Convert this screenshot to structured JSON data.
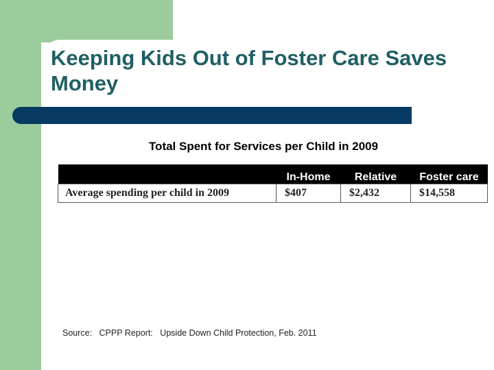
{
  "slide": {
    "title": "Keeping Kids Out of Foster Care Saves Money",
    "table_caption": "Total Spent for Services per Child in 2009",
    "table": {
      "headers": [
        "",
        "In-Home",
        "Relative",
        "Foster care"
      ],
      "rows": [
        [
          "Average spending per child in 2009",
          "$407",
          "$2,432",
          "$14,558"
        ]
      ]
    },
    "source": "Source:   CPPP Report:   Upside Down Child Protection, Feb. 2011"
  },
  "colors": {
    "frame_green": "#9ccc9c",
    "title_teal": "#1f5f63",
    "bar_navy": "#063a63"
  }
}
